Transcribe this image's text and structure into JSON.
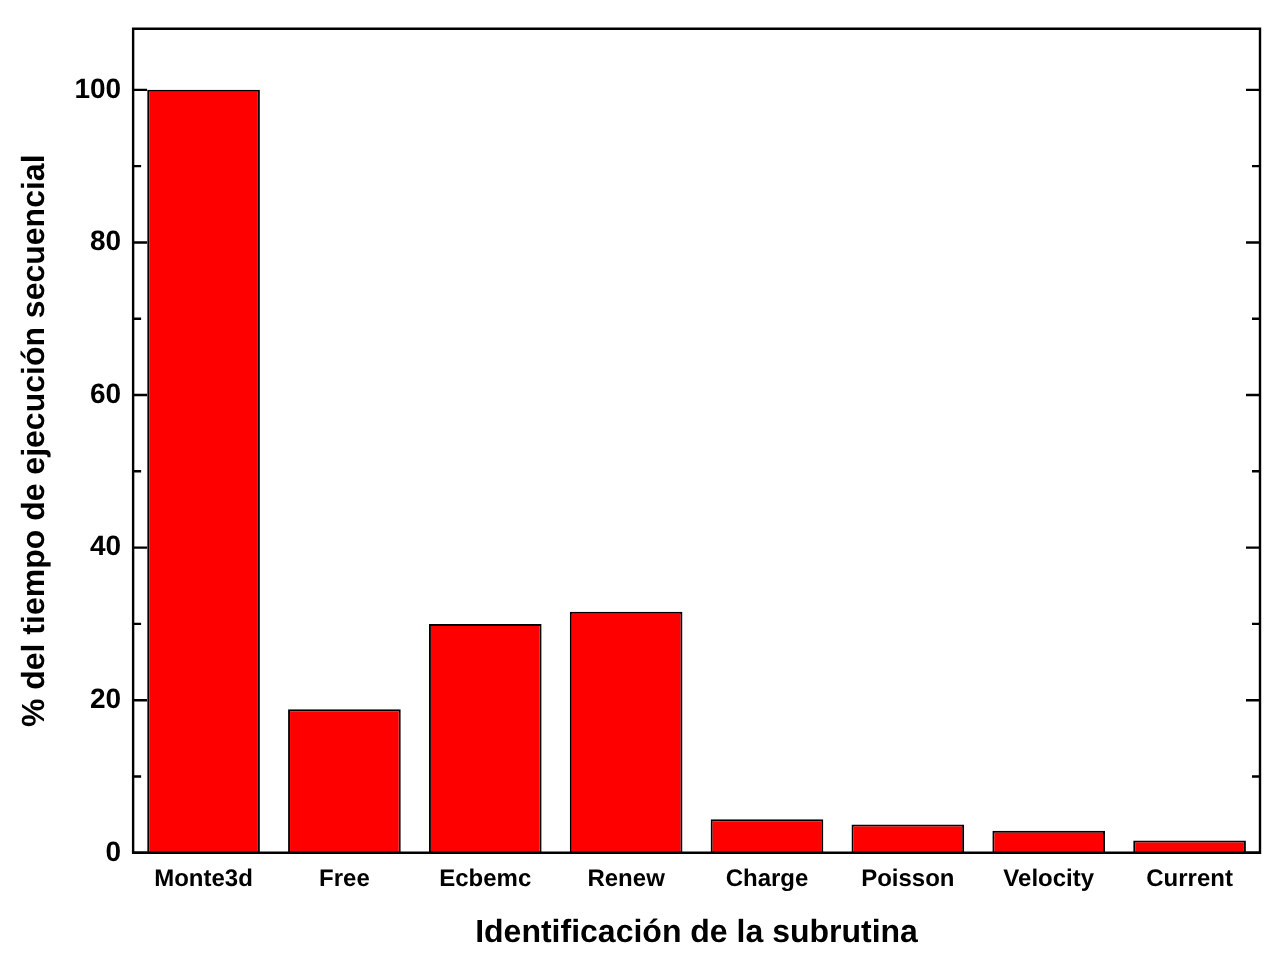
{
  "chart_data": {
    "type": "bar",
    "xlabel": "Identificación de la subrutina",
    "ylabel": "% del tiempo de ejecución secuencial",
    "categories": [
      "Monte3d",
      "Free",
      "Ecbemc",
      "Renew",
      "Charge",
      "Poisson",
      "Velocity",
      "Current"
    ],
    "values": [
      100,
      18.8,
      30.0,
      31.6,
      4.4,
      3.7,
      2.9,
      1.6
    ],
    "color": "#ff0000",
    "ylim": [
      0,
      108
    ],
    "yticks": [
      0,
      {
        "value": 10,
        "label": null
      },
      20,
      {
        "value": 30,
        "label": null
      },
      40,
      {
        "value": 50,
        "label": null
      },
      60,
      {
        "value": 70,
        "label": null
      },
      80,
      {
        "value": 90,
        "label": null
      },
      100
    ],
    "grid": false,
    "legend": false
  }
}
